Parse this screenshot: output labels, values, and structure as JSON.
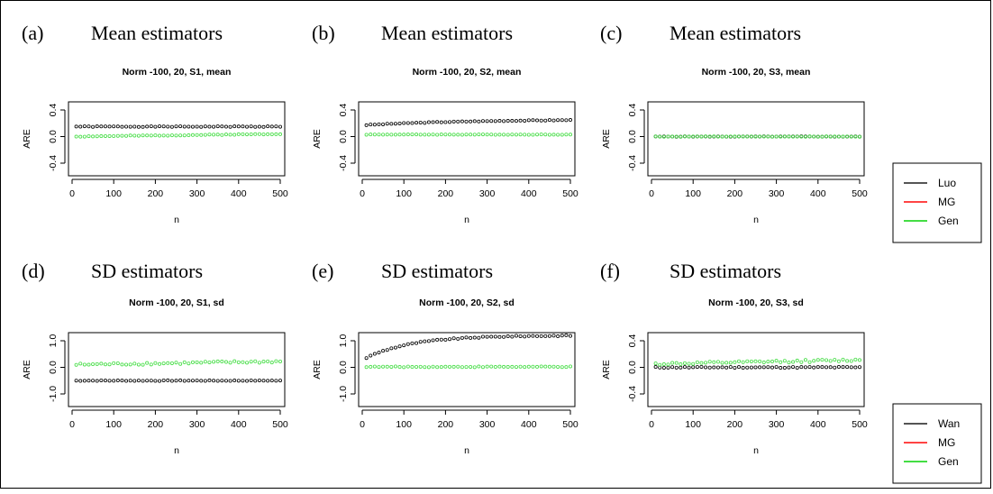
{
  "colors": {
    "black": "#000000",
    "red": "#ff4444",
    "green": "#44dd44"
  },
  "legends": [
    {
      "items": [
        {
          "label": "Luo",
          "color": "#555555"
        },
        {
          "label": "MG",
          "color": "#ff4444"
        },
        {
          "label": "Gen",
          "color": "#44dd44"
        }
      ]
    },
    {
      "items": [
        {
          "label": "Wan",
          "color": "#555555"
        },
        {
          "label": "MG",
          "color": "#ff4444"
        },
        {
          "label": "Gen",
          "color": "#44dd44"
        }
      ]
    }
  ],
  "chart_data": [
    {
      "type": "scatter",
      "panel_letter": "(a)",
      "panel_title": "Mean estimators",
      "title": "Norm -100, 20, S1, mean",
      "xlabel": "n",
      "ylabel": "ARE",
      "xlim": [
        0,
        500
      ],
      "ylim": [
        -0.4,
        0.4
      ],
      "xticks": [
        "0",
        "100",
        "200",
        "300",
        "400",
        "500"
      ],
      "yticks": [
        {
          "v": 0.4,
          "t": "0.4"
        },
        {
          "v": 0.0,
          "t": "0.0"
        },
        {
          "v": -0.4,
          "t": "-0.4"
        }
      ],
      "series": [
        {
          "name": "Luo",
          "color": "#000000",
          "gen": {
            "type": "const",
            "base": 0.15,
            "noise": 0.005,
            "seed": 1
          }
        },
        {
          "name": "Gen",
          "color": "#44dd44",
          "gen": {
            "type": "linear",
            "start": 0.0,
            "end": 0.04,
            "noise": 0.005,
            "seed": 2
          }
        }
      ]
    },
    {
      "type": "scatter",
      "panel_letter": "(b)",
      "panel_title": "Mean estimators",
      "title": "Norm -100, 20, S2, mean",
      "xlabel": "n",
      "ylabel": "ARE",
      "xlim": [
        0,
        500
      ],
      "ylim": [
        -0.4,
        0.4
      ],
      "xticks": [
        "0",
        "100",
        "200",
        "300",
        "400",
        "500"
      ],
      "yticks": [
        {
          "v": 0.4,
          "t": "0.4"
        },
        {
          "v": 0.0,
          "t": "0.0"
        },
        {
          "v": -0.4,
          "t": "-0.4"
        }
      ],
      "series": [
        {
          "name": "Luo",
          "color": "#000000",
          "gen": {
            "type": "sat",
            "a": 0.17,
            "b": 0.09,
            "k": 250,
            "noise": 0.005,
            "seed": 3
          }
        },
        {
          "name": "Gen",
          "color": "#44dd44",
          "gen": {
            "type": "const",
            "base": 0.03,
            "noise": 0.003,
            "seed": 4
          }
        }
      ]
    },
    {
      "type": "scatter",
      "panel_letter": "(c)",
      "panel_title": "Mean estimators",
      "title": "Norm -100, 20, S3, mean",
      "xlabel": "n",
      "ylabel": "ARE",
      "xlim": [
        0,
        500
      ],
      "ylim": [
        -0.4,
        0.4
      ],
      "xticks": [
        "0",
        "100",
        "200",
        "300",
        "400",
        "500"
      ],
      "yticks": [
        {
          "v": 0.4,
          "t": "0.4"
        },
        {
          "v": 0.0,
          "t": "0.0"
        },
        {
          "v": -0.4,
          "t": "-0.4"
        }
      ],
      "series": [
        {
          "name": "Luo",
          "color": "#000000",
          "gen": {
            "type": "const",
            "base": 0.0,
            "noise": 0.003,
            "seed": 5
          }
        },
        {
          "name": "Gen",
          "color": "#44dd44",
          "gen": {
            "type": "const",
            "base": 0.0,
            "noise": 0.003,
            "seed": 6
          }
        }
      ]
    },
    {
      "type": "scatter",
      "panel_letter": "(d)",
      "panel_title": "SD estimators",
      "title": "Norm -100, 20, S1, sd",
      "xlabel": "n",
      "ylabel": "ARE",
      "xlim": [
        0,
        500
      ],
      "ylim": [
        -1.0,
        1.0
      ],
      "xticks": [
        "0",
        "100",
        "200",
        "300",
        "400",
        "500"
      ],
      "yticks": [
        {
          "v": 1.0,
          "t": "1.0"
        },
        {
          "v": 0.0,
          "t": "0.0"
        },
        {
          "v": -1.0,
          "t": "-1.0"
        }
      ],
      "series": [
        {
          "name": "Wan",
          "color": "#000000",
          "gen": {
            "type": "const",
            "base": -0.5,
            "noise": 0.012,
            "seed": 7
          }
        },
        {
          "name": "Gen",
          "color": "#44dd44",
          "gen": {
            "type": "linear",
            "start": 0.1,
            "end": 0.22,
            "noise": 0.045,
            "seed": 8
          }
        }
      ]
    },
    {
      "type": "scatter",
      "panel_letter": "(e)",
      "panel_title": "SD estimators",
      "title": "Norm -100, 20, S2, sd",
      "xlabel": "n",
      "ylabel": "ARE",
      "xlim": [
        0,
        500
      ],
      "ylim": [
        -1.0,
        1.0
      ],
      "xticks": [
        "0",
        "100",
        "200",
        "300",
        "400",
        "500"
      ],
      "yticks": [
        {
          "v": 1.0,
          "t": "1.0"
        },
        {
          "v": 0.0,
          "t": "0.0"
        },
        {
          "v": -1.0,
          "t": "-1.0"
        }
      ],
      "series": [
        {
          "name": "Wan",
          "color": "#000000",
          "gen": {
            "type": "sat",
            "a": 0.28,
            "b": 0.92,
            "k": 110,
            "noise": 0.02,
            "seed": 9
          }
        },
        {
          "name": "Gen",
          "color": "#44dd44",
          "gen": {
            "type": "const",
            "base": 0.02,
            "noise": 0.015,
            "seed": 10
          }
        }
      ]
    },
    {
      "type": "scatter",
      "panel_letter": "(f)",
      "panel_title": "SD estimators",
      "title": "Norm -100, 20, S3, sd",
      "xlabel": "n",
      "ylabel": "ARE",
      "xlim": [
        0,
        500
      ],
      "ylim": [
        -0.4,
        0.4
      ],
      "xticks": [
        "0",
        "100",
        "200",
        "300",
        "400",
        "500"
      ],
      "yticks": [
        {
          "v": 0.4,
          "t": "0.4"
        },
        {
          "v": 0.0,
          "t": "0.0"
        },
        {
          "v": -0.4,
          "t": "-0.4"
        }
      ],
      "series": [
        {
          "name": "Wan",
          "color": "#000000",
          "gen": {
            "type": "const",
            "base": 0.0,
            "noise": 0.008,
            "seed": 11
          }
        },
        {
          "name": "Gen",
          "color": "#44dd44",
          "gen": {
            "type": "linear",
            "start": 0.05,
            "end": 0.11,
            "noise": 0.018,
            "seed": 12
          }
        }
      ]
    }
  ]
}
